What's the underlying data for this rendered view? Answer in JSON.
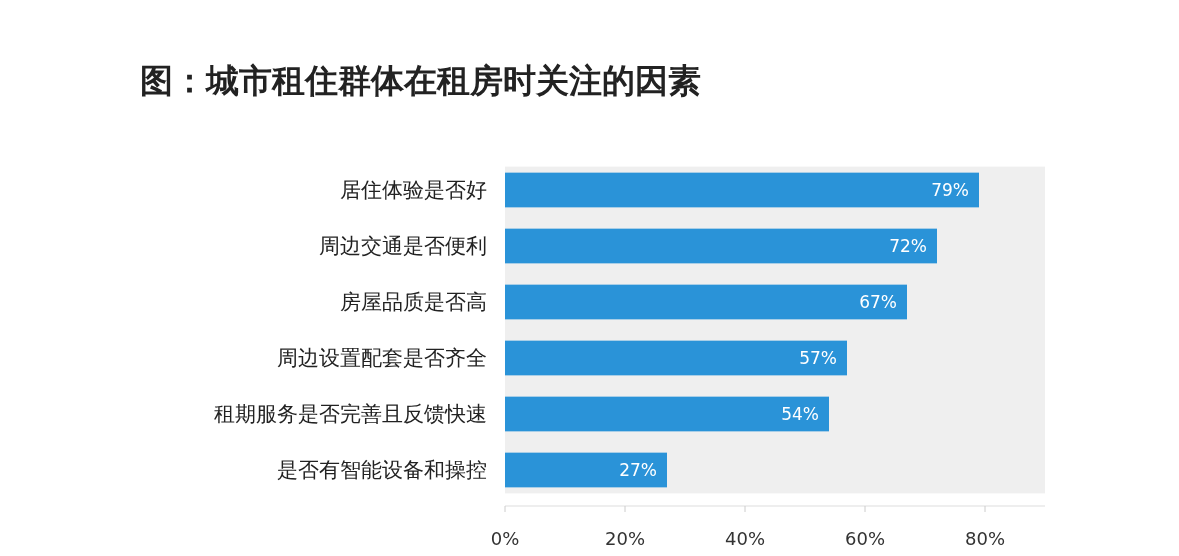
{
  "chart_data": {
    "type": "bar",
    "orientation": "horizontal",
    "title": "图：城市租住群体在租房时关注的因素",
    "categories": [
      "居住体验是否好",
      "周边交通是否便利",
      "房屋品质是否高",
      "周边设置配套是否齐全",
      "租期服务是否完善且反馈快速",
      "是否有智能设备和操控"
    ],
    "values": [
      79,
      72,
      67,
      57,
      54,
      27
    ],
    "value_labels": [
      "79%",
      "72%",
      "67%",
      "57%",
      "54%",
      "27%"
    ],
    "color": "#2a93d8",
    "xlim": [
      0,
      90
    ],
    "xticks": [
      {
        "value": 0,
        "label": "0%"
      },
      {
        "value": 20,
        "label": "20%"
      },
      {
        "value": 40,
        "label": "40%"
      },
      {
        "value": 60,
        "label": "60%"
      },
      {
        "value": 80,
        "label": "80%"
      }
    ],
    "bands": [
      {
        "axis": "x",
        "from": 0,
        "to": 90,
        "color": "#efefef"
      }
    ],
    "grid": false
  }
}
